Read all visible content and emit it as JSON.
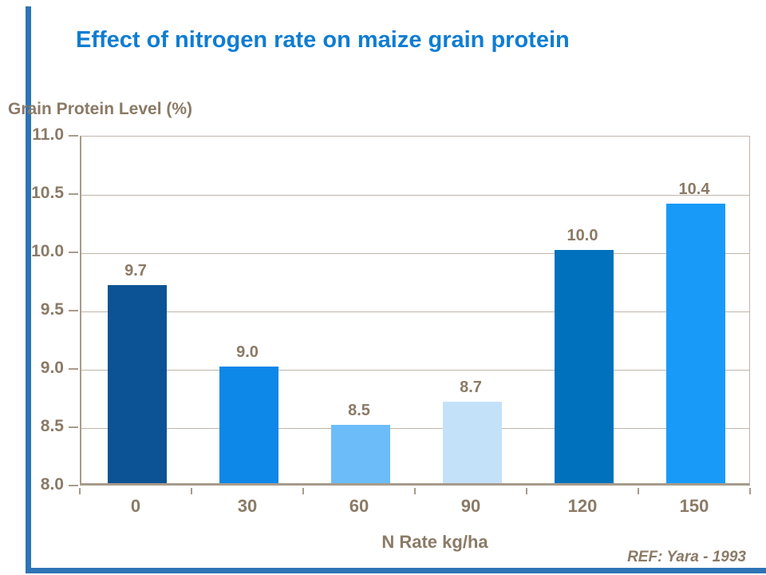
{
  "slide": {
    "title": "Effect of nitrogen rate on maize grain protein",
    "ref_note": "REF: Yara - 1993"
  },
  "theme": {
    "background": "#FFFFFF",
    "title_color": "#0F7DD2",
    "text_color": "#8B7A66",
    "gridline_color": "#C0B6AA",
    "axis_color": "#A79B8B",
    "accent_stripe_color": "#2E74B5"
  },
  "chart_data": {
    "type": "bar",
    "title": "Effect of nitrogen rate on maize grain protein",
    "ylabel": "Grain Protein Level (%)",
    "xlabel": "N Rate kg/ha",
    "categories": [
      "0",
      "30",
      "60",
      "90",
      "120",
      "150"
    ],
    "values": [
      9.7,
      9.0,
      8.5,
      8.7,
      10.0,
      10.4
    ],
    "data_labels": [
      "9.7",
      "9.0",
      "8.5",
      "8.7",
      "10.0",
      "10.4"
    ],
    "bar_colors": [
      "#0B5394",
      "#0D87E8",
      "#6BBCF8",
      "#C4E1FA",
      "#0071BC",
      "#189BF8"
    ],
    "ylim": [
      8.0,
      11.0
    ],
    "ytick_step": 0.5,
    "yticks": [
      "11.0",
      "10.5",
      "10.0",
      "9.5",
      "9.0",
      "8.5",
      "8.0"
    ],
    "grid": "horizontal",
    "legend": "none",
    "annotation": "REF: Yara - 1993"
  }
}
